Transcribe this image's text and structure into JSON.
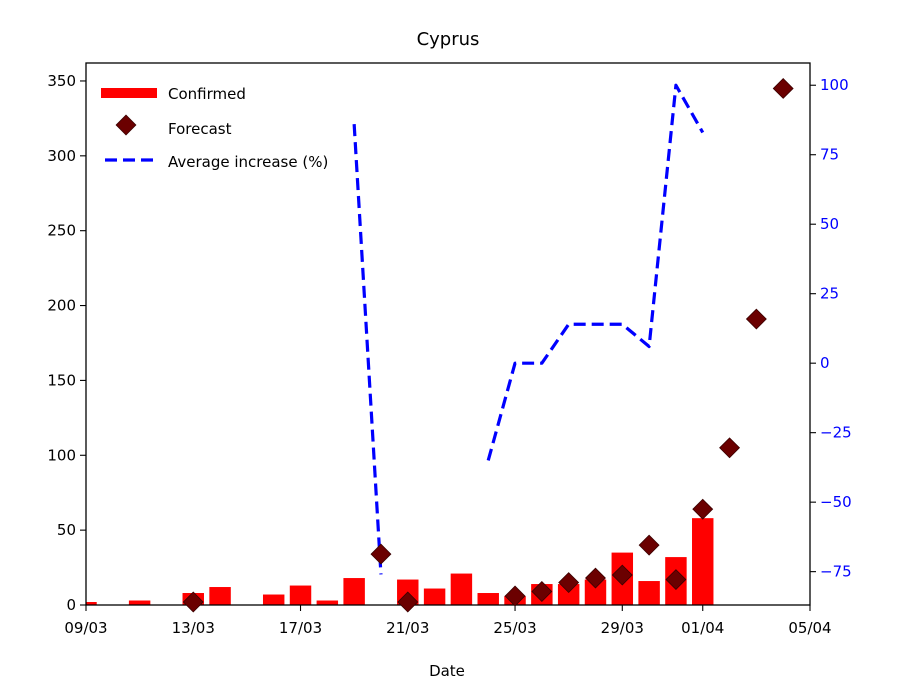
{
  "chart_data": {
    "type": "bar",
    "title": "Cyprus",
    "xlabel": "Date",
    "ylabel": "",
    "y2label": "",
    "x_ticks": [
      "09/03",
      "13/03",
      "17/03",
      "21/03",
      "25/03",
      "29/03",
      "01/04",
      "05/04"
    ],
    "x_tick_days": [
      0,
      4,
      8,
      12,
      16,
      20,
      23,
      27
    ],
    "xlim_days": [
      0,
      27
    ],
    "ylim": [
      0,
      362
    ],
    "y_ticks": [
      0,
      50,
      100,
      150,
      200,
      250,
      300,
      350
    ],
    "y2lim": [
      -87,
      108
    ],
    "y2_ticks": [
      -75,
      -50,
      -25,
      0,
      25,
      50,
      75,
      100
    ],
    "legend_position": "top-left",
    "colors": {
      "confirmed": "#ff0000",
      "forecast": "#6b0000",
      "average_increase": "#0000ff",
      "right_axis": "#0000ff"
    },
    "series": [
      {
        "name": "Confirmed",
        "type": "bar",
        "x": [
          0,
          2,
          4,
          5,
          7,
          8,
          9,
          10,
          12,
          13,
          14,
          15,
          16,
          17,
          18,
          19,
          20,
          21,
          22,
          23
        ],
        "values": [
          2,
          3,
          8,
          12,
          7,
          13,
          3,
          18,
          17,
          11,
          21,
          8,
          6,
          14,
          14,
          17,
          35,
          16,
          32,
          58
        ]
      },
      {
        "name": "Forecast",
        "type": "scatter",
        "x": [
          4,
          11,
          12,
          16,
          17,
          18,
          19,
          20,
          21,
          22,
          23,
          24,
          25,
          26
        ],
        "values": [
          2,
          34,
          2,
          6,
          9,
          15,
          18,
          20,
          40,
          17,
          64,
          105,
          191,
          345
        ]
      },
      {
        "name": "Average increase (%)",
        "type": "line",
        "axis": "right",
        "segments": [
          {
            "x": [
              10,
              11
            ],
            "values": [
              86,
              -76
            ]
          },
          {
            "x": [
              15,
              16,
              17,
              18,
              19,
              20,
              21,
              22,
              23
            ],
            "values": [
              -35,
              0,
              0,
              14,
              14,
              14,
              6,
              100,
              83
            ]
          }
        ]
      }
    ]
  }
}
